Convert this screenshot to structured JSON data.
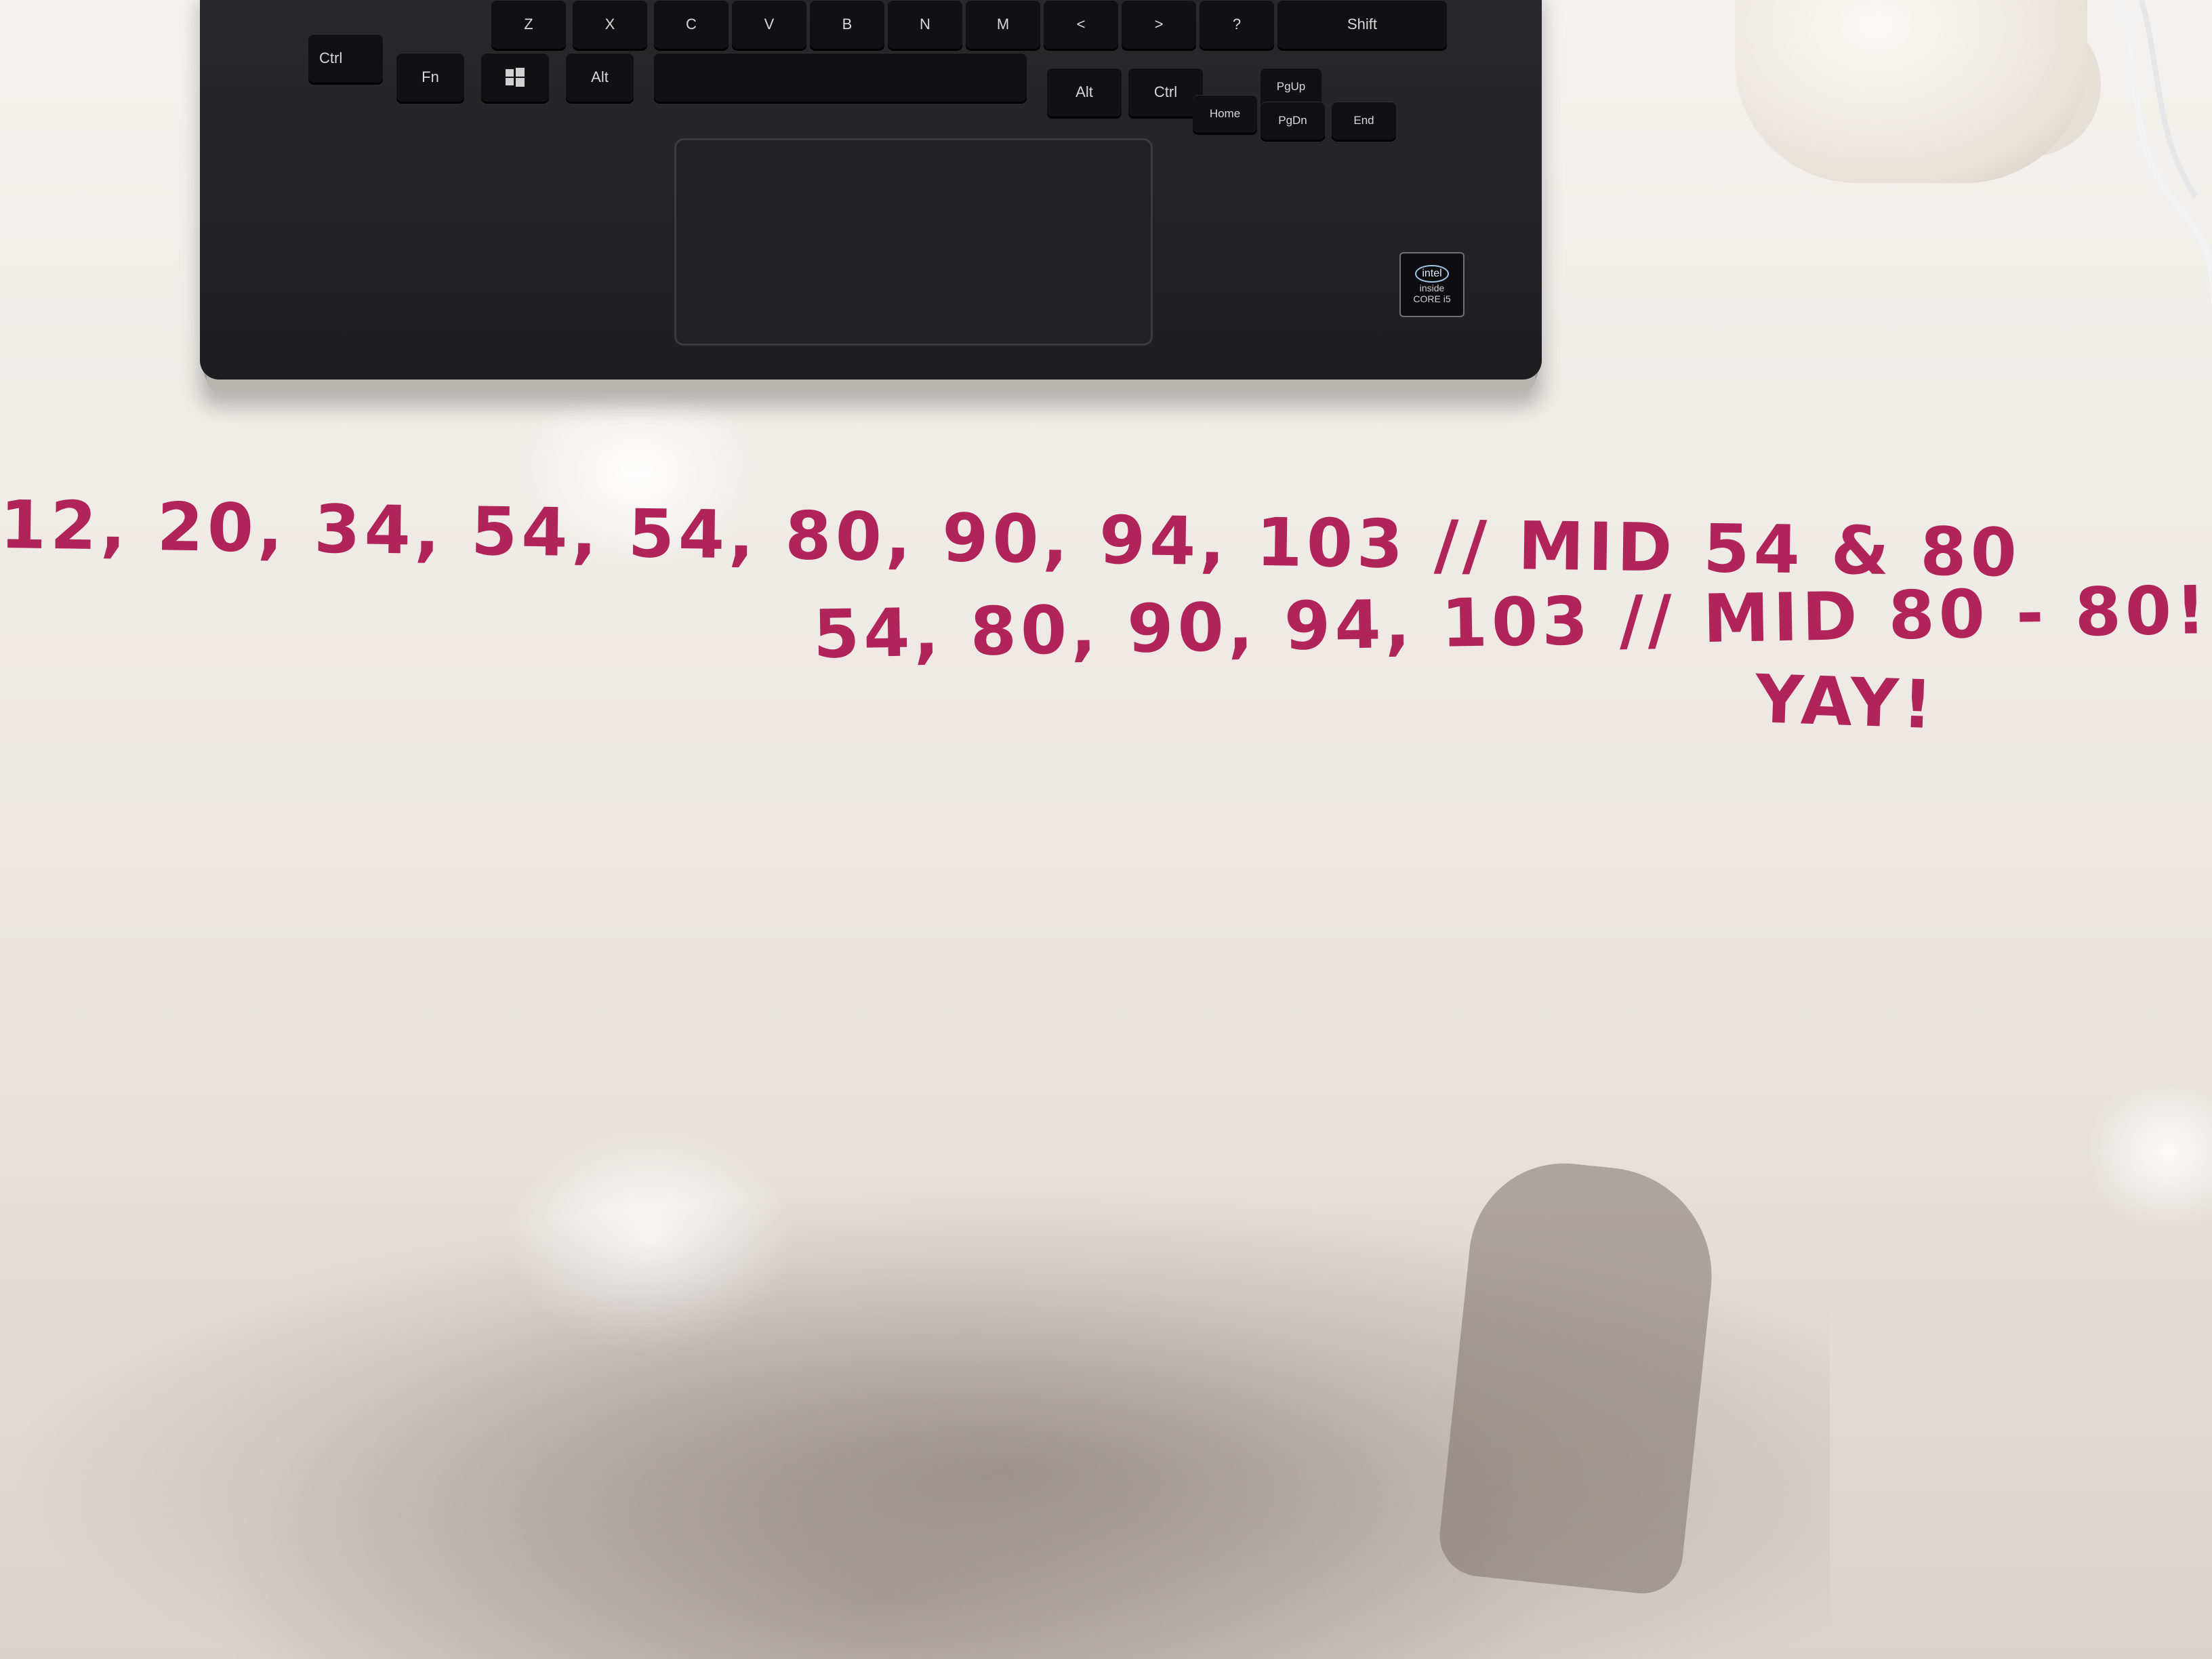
{
  "scene": {
    "keys": {
      "row2": [
        "Z",
        "X",
        "C",
        "V",
        "B",
        "N",
        "M",
        "<",
        ">",
        "?",
        "Shift"
      ],
      "row1": [
        "Ctrl",
        "Fn",
        "Alt",
        "Alt",
        "Ctrl",
        "PgUp",
        "Home",
        "PgDn",
        "End"
      ]
    },
    "badge": {
      "logo": "intel",
      "line1": "inside",
      "line2": "CORE i5"
    },
    "whiteboard": {
      "line1": "12, 20, 34, 54, 54, 80, 90, 94, 103 // MID 54 & 80",
      "line2": "54, 80, 90, 94, 103 // MID 80 - 80!",
      "line3": "YAY!"
    },
    "ink_color": "#b0245a"
  }
}
